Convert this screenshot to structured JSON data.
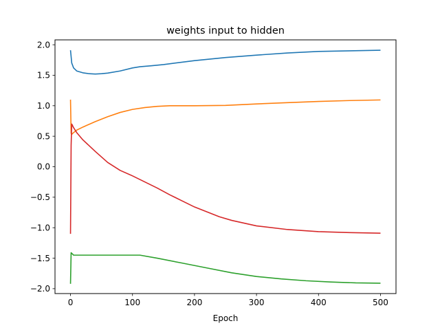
{
  "chart_data": {
    "type": "line",
    "title": "weights input to hidden",
    "xlabel": "Epoch",
    "ylabel": "",
    "xlim": [
      -25,
      525
    ],
    "ylim": [
      -2.08,
      2.08
    ],
    "xticks": [
      0,
      100,
      200,
      300,
      400,
      500
    ],
    "xtick_labels": [
      "0",
      "100",
      "200",
      "300",
      "400",
      "500"
    ],
    "yticks": [
      2.0,
      1.5,
      1.0,
      0.5,
      0.0,
      -0.5,
      -1.0,
      -1.5,
      -2.0
    ],
    "ytick_labels": [
      "2.0",
      "1.5",
      "1.0",
      "0.5",
      "0.0",
      "−0.5",
      "−1.0",
      "−1.5",
      "−2.0"
    ],
    "grid": false,
    "series": [
      {
        "color": "#1f77b4",
        "x": [
          0,
          2,
          5,
          10,
          20,
          30,
          40,
          50,
          60,
          80,
          100,
          112,
          130,
          150,
          200,
          250,
          300,
          350,
          400,
          450,
          500
        ],
        "y": [
          1.91,
          1.7,
          1.62,
          1.57,
          1.54,
          1.525,
          1.52,
          1.525,
          1.535,
          1.57,
          1.62,
          1.64,
          1.655,
          1.675,
          1.74,
          1.79,
          1.83,
          1.865,
          1.89,
          1.9,
          1.91
        ]
      },
      {
        "color": "#ff7f0e",
        "x": [
          0,
          1,
          2,
          5,
          10,
          20,
          40,
          60,
          80,
          100,
          120,
          140,
          160,
          200,
          250,
          300,
          350,
          400,
          450,
          500
        ],
        "y": [
          1.1,
          0.55,
          0.53,
          0.56,
          0.6,
          0.65,
          0.74,
          0.82,
          0.89,
          0.94,
          0.97,
          0.99,
          1.0,
          1.0,
          1.005,
          1.03,
          1.05,
          1.07,
          1.085,
          1.095
        ]
      },
      {
        "color": "#2ca02c",
        "x": [
          0,
          1,
          3,
          5,
          10,
          30,
          60,
          90,
          112,
          140,
          180,
          220,
          260,
          300,
          340,
          380,
          420,
          460,
          500
        ],
        "y": [
          -1.92,
          -1.41,
          -1.43,
          -1.45,
          -1.45,
          -1.45,
          -1.45,
          -1.45,
          -1.45,
          -1.5,
          -1.58,
          -1.66,
          -1.74,
          -1.8,
          -1.84,
          -1.87,
          -1.89,
          -1.905,
          -1.91
        ]
      },
      {
        "color": "#d62728",
        "x": [
          0,
          1,
          2,
          5,
          10,
          20,
          40,
          60,
          80,
          100,
          120,
          140,
          160,
          180,
          200,
          220,
          240,
          260,
          300,
          350,
          400,
          450,
          500
        ],
        "y": [
          -1.1,
          0.35,
          0.7,
          0.64,
          0.56,
          0.44,
          0.25,
          0.07,
          -0.06,
          -0.15,
          -0.25,
          -0.35,
          -0.46,
          -0.56,
          -0.66,
          -0.74,
          -0.82,
          -0.88,
          -0.97,
          -1.03,
          -1.065,
          -1.08,
          -1.09
        ]
      }
    ]
  }
}
